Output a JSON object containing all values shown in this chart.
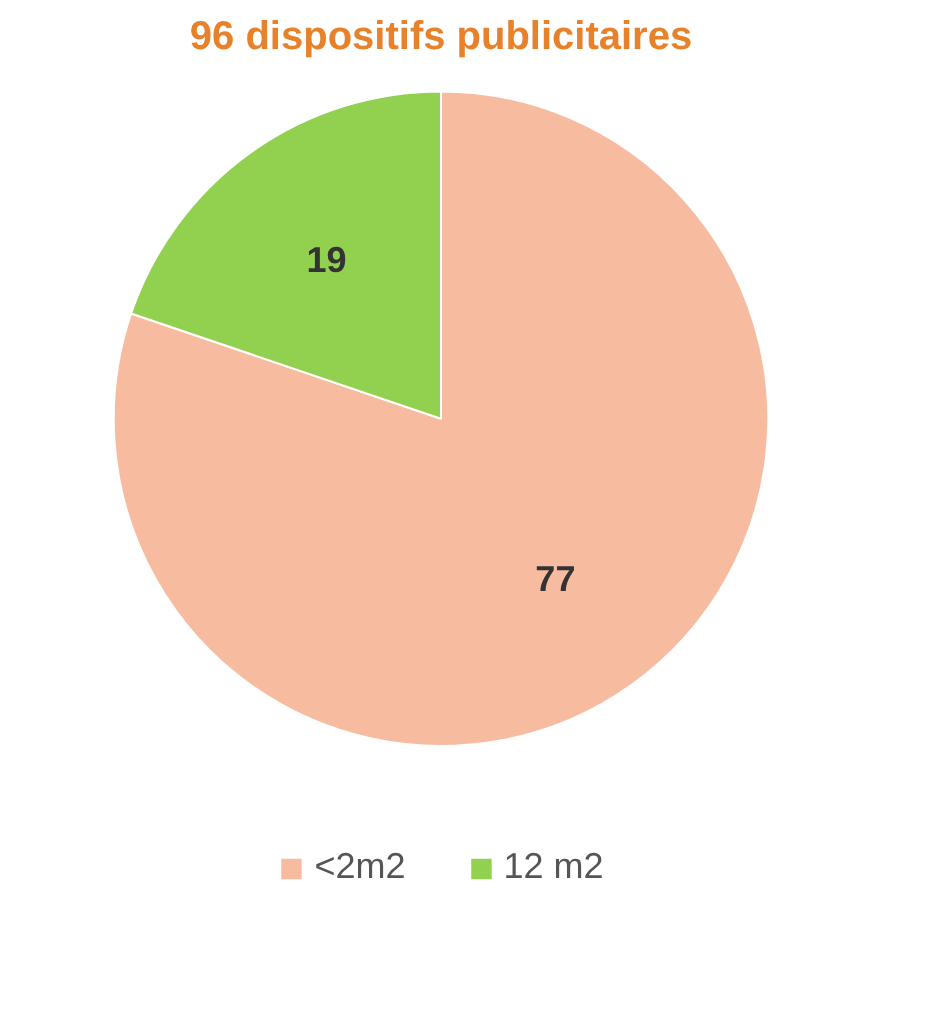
{
  "chart_data": {
    "type": "pie",
    "title": "96 dispositifs publicitaires",
    "categories": [
      "<2m2",
      "12 m2"
    ],
    "values": [
      77,
      19
    ],
    "colors": [
      "#f7bca0",
      "#92d050"
    ],
    "data_labels": true,
    "legend": "bottom"
  }
}
